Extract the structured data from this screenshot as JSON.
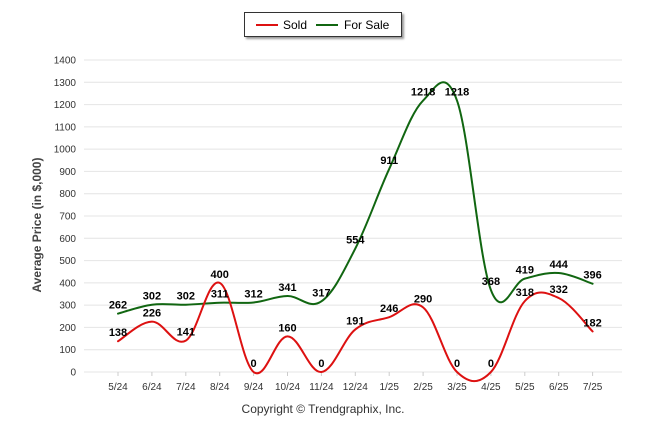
{
  "chart_data": {
    "type": "line",
    "categories": [
      "5/24",
      "6/24",
      "7/24",
      "8/24",
      "9/24",
      "10/24",
      "11/24",
      "12/24",
      "1/25",
      "2/25",
      "3/25",
      "4/25",
      "5/25",
      "6/25",
      "7/25"
    ],
    "series": [
      {
        "name": "Sold",
        "color": "#dd1111",
        "values": [
          138,
          226,
          141,
          400,
          0,
          160,
          0,
          191,
          246,
          290,
          0,
          0,
          318,
          332,
          182
        ]
      },
      {
        "name": "For Sale",
        "color": "#116611",
        "values": [
          262,
          302,
          302,
          311,
          312,
          341,
          317,
          554,
          911,
          1218,
          1218,
          368,
          419,
          444,
          396
        ]
      }
    ],
    "ylabel": "Average Price (in $,000)",
    "xlabel": "",
    "ylim": [
      0,
      1400
    ],
    "yticks": [
      0,
      100,
      200,
      300,
      400,
      500,
      600,
      700,
      800,
      900,
      1000,
      1100,
      1200,
      1300,
      1400
    ],
    "grid": true,
    "legend_position": "top-center"
  },
  "footer": "Copyright © Trendgraphix, Inc."
}
